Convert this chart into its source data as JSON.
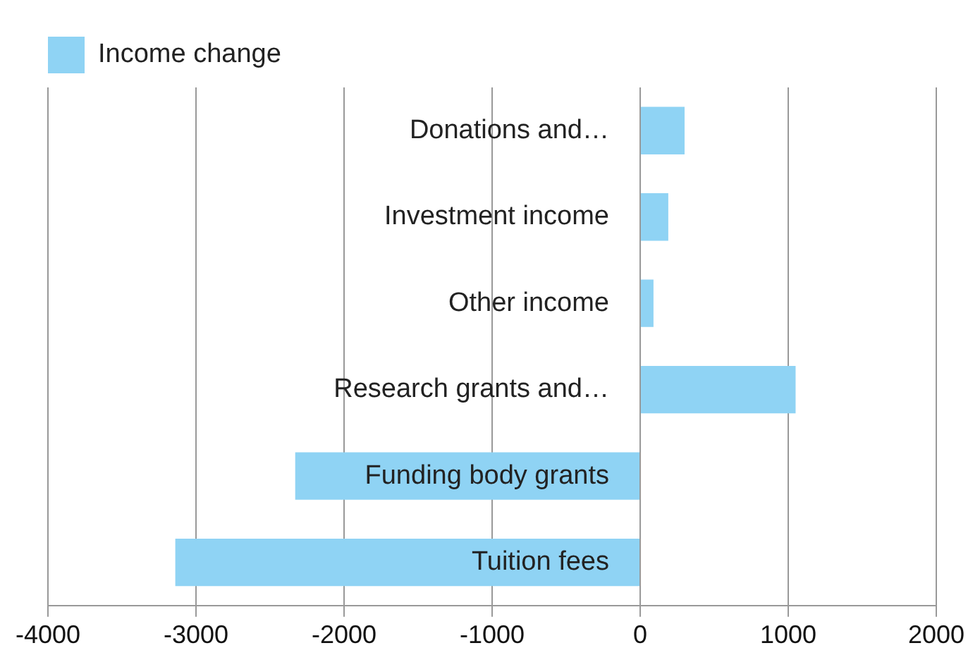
{
  "chart_data": {
    "type": "bar",
    "orientation": "horizontal",
    "categories": [
      "Donations and…",
      "Investment income",
      "Other income",
      "Research grants and…",
      "Funding body grants",
      "Tuition fees"
    ],
    "series": [
      {
        "name": "Income change",
        "color": "#8fd3f4",
        "values": [
          300,
          190,
          90,
          1050,
          -2330,
          -3140
        ]
      }
    ],
    "xlim": [
      -4000,
      2000
    ],
    "xticks": [
      -4000,
      -3000,
      -2000,
      -1000,
      0,
      1000,
      2000
    ],
    "grid": "x",
    "legend": "top left"
  }
}
